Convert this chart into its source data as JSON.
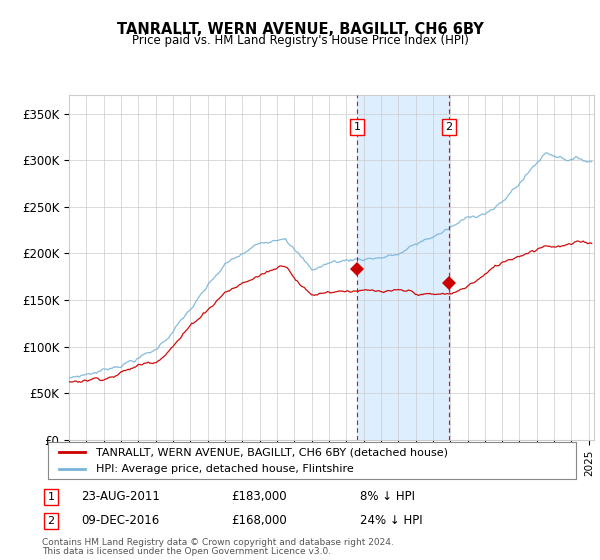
{
  "title": "TANRALLT, WERN AVENUE, BAGILLT, CH6 6BY",
  "subtitle": "Price paid vs. HM Land Registry's House Price Index (HPI)",
  "ylabel_ticks": [
    "£0",
    "£50K",
    "£100K",
    "£150K",
    "£200K",
    "£250K",
    "£300K",
    "£350K"
  ],
  "ytick_values": [
    0,
    50000,
    100000,
    150000,
    200000,
    250000,
    300000,
    350000
  ],
  "ylim": [
    0,
    370000
  ],
  "xlim_start": 1995.0,
  "xlim_end": 2025.3,
  "hpi_color": "#7ab4d8",
  "price_color": "#cc0000",
  "transaction1_date": "23-AUG-2011",
  "transaction1_price": 183000,
  "transaction1_label": "1",
  "transaction1_x": 2011.64,
  "transaction1_y": 183000,
  "transaction1_pct": "8%",
  "transaction2_date": "09-DEC-2016",
  "transaction2_price": 168000,
  "transaction2_label": "2",
  "transaction2_x": 2016.94,
  "transaction2_y": 168000,
  "transaction2_pct": "24%",
  "legend_label1": "TANRALLT, WERN AVENUE, BAGILLT, CH6 6BY (detached house)",
  "legend_label2": "HPI: Average price, detached house, Flintshire",
  "footnote1": "Contains HM Land Registry data © Crown copyright and database right 2024.",
  "footnote2": "This data is licensed under the Open Government Licence v3.0.",
  "plot_bg": "#ffffff",
  "shade_color": "#ddeeff",
  "grid_color": "#cccccc"
}
